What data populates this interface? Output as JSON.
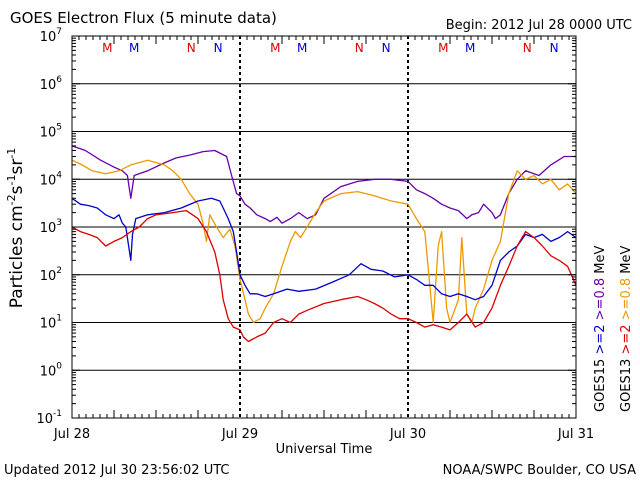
{
  "header": {
    "title": "GOES Electron Flux (5 minute data)",
    "begin": "Begin: 2012 Jul 28 0000 UTC"
  },
  "footer": {
    "updated": "Updated 2012 Jul 30 23:56:02 UTC",
    "credit": "NOAA/SWPC Boulder, CO USA"
  },
  "chart_data": {
    "type": "line",
    "title": "GOES Electron Flux (5 minute data)",
    "xlabel": "Universal Time",
    "ylabel": "Particles cm-2s-1sr-1",
    "ylabel_parts": {
      "main": "Particles cm",
      "exp1": "-2",
      "mid": "s",
      "exp2": "-1",
      "end": "sr",
      "exp3": "-1"
    },
    "x_ticks": [
      "Jul 28",
      "Jul 29",
      "Jul 30",
      "Jul 31"
    ],
    "x_range_days": [
      0,
      3
    ],
    "y_scale": "log",
    "ylim": [
      0.1,
      10000000
    ],
    "y_tick_labels": [
      {
        "base": "10",
        "exp": "7"
      },
      {
        "base": "10",
        "exp": "6"
      },
      {
        "base": "10",
        "exp": "5"
      },
      {
        "base": "10",
        "exp": "4"
      },
      {
        "base": "10",
        "exp": "3"
      },
      {
        "base": "10",
        "exp": "2"
      },
      {
        "base": "10",
        "exp": "1"
      },
      {
        "base": "10",
        "exp": "0"
      },
      {
        "base": "10",
        "exp": "-1"
      }
    ],
    "threshold_level": 1000,
    "markers": [
      {
        "label": "M",
        "color": "#dd0000",
        "day": 0.21
      },
      {
        "label": "M",
        "color": "#0000cc",
        "day": 0.37
      },
      {
        "label": "N",
        "color": "#dd0000",
        "day": 0.71
      },
      {
        "label": "N",
        "color": "#0000cc",
        "day": 0.87
      },
      {
        "label": "M",
        "color": "#dd0000",
        "day": 1.21
      },
      {
        "label": "M",
        "color": "#0000cc",
        "day": 1.37
      },
      {
        "label": "N",
        "color": "#dd0000",
        "day": 1.71
      },
      {
        "label": "N",
        "color": "#0000cc",
        "day": 1.87
      },
      {
        "label": "M",
        "color": "#dd0000",
        "day": 2.21
      },
      {
        "label": "M",
        "color": "#0000cc",
        "day": 2.37
      },
      {
        "label": "N",
        "color": "#dd0000",
        "day": 2.71
      },
      {
        "label": "N",
        "color": "#0000cc",
        "day": 2.87
      }
    ],
    "legend": [
      {
        "sat": "GOES15",
        "gt2": ">=2",
        "gt08": ">=0.8",
        "unit": "MeV",
        "gt2_color": "#0000cc",
        "gt08_color": "#6600aa"
      },
      {
        "sat": "GOES13",
        "gt2": ">=2",
        "gt08": ">=0.8",
        "unit": "MeV",
        "gt2_color": "#dd0000",
        "gt08_color": "#ee9900"
      }
    ],
    "series": [
      {
        "name": "GOES15 >=0.8 MeV",
        "color": "#6600aa",
        "points": [
          [
            0,
            50000
          ],
          [
            0.08,
            40000
          ],
          [
            0.17,
            25000
          ],
          [
            0.25,
            18000
          ],
          [
            0.3,
            15000
          ],
          [
            0.33,
            12000
          ],
          [
            0.35,
            4000
          ],
          [
            0.37,
            12000
          ],
          [
            0.45,
            15000
          ],
          [
            0.55,
            22000
          ],
          [
            0.62,
            28000
          ],
          [
            0.7,
            32000
          ],
          [
            0.78,
            38000
          ],
          [
            0.85,
            40000
          ],
          [
            0.92,
            30000
          ],
          [
            0.95,
            12000
          ],
          [
            0.98,
            5000
          ],
          [
            1.0,
            4500
          ],
          [
            1.03,
            3000
          ],
          [
            1.06,
            2500
          ],
          [
            1.1,
            1800
          ],
          [
            1.15,
            1500
          ],
          [
            1.18,
            1300
          ],
          [
            1.22,
            1600
          ],
          [
            1.25,
            1200
          ],
          [
            1.3,
            1500
          ],
          [
            1.35,
            2000
          ],
          [
            1.4,
            1500
          ],
          [
            1.45,
            1800
          ],
          [
            1.5,
            4000
          ],
          [
            1.6,
            7000
          ],
          [
            1.7,
            9000
          ],
          [
            1.8,
            10000
          ],
          [
            1.9,
            10000
          ],
          [
            2.0,
            9000
          ],
          [
            2.05,
            6000
          ],
          [
            2.1,
            5000
          ],
          [
            2.15,
            4000
          ],
          [
            2.2,
            3000
          ],
          [
            2.25,
            2500
          ],
          [
            2.3,
            2200
          ],
          [
            2.35,
            1500
          ],
          [
            2.38,
            1800
          ],
          [
            2.42,
            2000
          ],
          [
            2.45,
            3000
          ],
          [
            2.5,
            2000
          ],
          [
            2.52,
            1500
          ],
          [
            2.55,
            1800
          ],
          [
            2.6,
            5000
          ],
          [
            2.65,
            10000
          ],
          [
            2.7,
            15000
          ],
          [
            2.78,
            12000
          ],
          [
            2.85,
            20000
          ],
          [
            2.93,
            30000
          ],
          [
            3.0,
            30000
          ]
        ]
      },
      {
        "name": "GOES13 >=0.8 MeV",
        "color": "#ee9900",
        "points": [
          [
            0,
            25000
          ],
          [
            0.06,
            20000
          ],
          [
            0.12,
            15000
          ],
          [
            0.2,
            13000
          ],
          [
            0.28,
            15000
          ],
          [
            0.35,
            20000
          ],
          [
            0.45,
            25000
          ],
          [
            0.55,
            20000
          ],
          [
            0.6,
            15000
          ],
          [
            0.65,
            10000
          ],
          [
            0.7,
            5000
          ],
          [
            0.75,
            3000
          ],
          [
            0.78,
            1200
          ],
          [
            0.8,
            500
          ],
          [
            0.82,
            1800
          ],
          [
            0.86,
            1000
          ],
          [
            0.9,
            600
          ],
          [
            0.94,
            900
          ],
          [
            0.97,
            400
          ],
          [
            1.0,
            80
          ],
          [
            1.03,
            30
          ],
          [
            1.05,
            15
          ],
          [
            1.08,
            10
          ],
          [
            1.12,
            12
          ],
          [
            1.15,
            20
          ],
          [
            1.2,
            40
          ],
          [
            1.25,
            150
          ],
          [
            1.3,
            500
          ],
          [
            1.33,
            800
          ],
          [
            1.36,
            600
          ],
          [
            1.4,
            1000
          ],
          [
            1.45,
            2000
          ],
          [
            1.5,
            3500
          ],
          [
            1.6,
            5000
          ],
          [
            1.7,
            5500
          ],
          [
            1.8,
            4500
          ],
          [
            1.9,
            3500
          ],
          [
            2.0,
            3000
          ],
          [
            2.05,
            1500
          ],
          [
            2.1,
            800
          ],
          [
            2.13,
            60
          ],
          [
            2.15,
            10
          ],
          [
            2.18,
            400
          ],
          [
            2.2,
            800
          ],
          [
            2.23,
            20
          ],
          [
            2.25,
            10
          ],
          [
            2.3,
            30
          ],
          [
            2.32,
            600
          ],
          [
            2.35,
            15
          ],
          [
            2.38,
            10
          ],
          [
            2.4,
            20
          ],
          [
            2.45,
            50
          ],
          [
            2.5,
            200
          ],
          [
            2.55,
            500
          ],
          [
            2.6,
            5000
          ],
          [
            2.65,
            15000
          ],
          [
            2.7,
            10000
          ],
          [
            2.75,
            12000
          ],
          [
            2.8,
            8000
          ],
          [
            2.85,
            10000
          ],
          [
            2.9,
            6000
          ],
          [
            2.95,
            8000
          ],
          [
            3.0,
            5000
          ]
        ]
      },
      {
        "name": "GOES15 >=2 MeV",
        "color": "#0000cc",
        "points": [
          [
            0,
            4000
          ],
          [
            0.05,
            3000
          ],
          [
            0.1,
            2800
          ],
          [
            0.15,
            2500
          ],
          [
            0.2,
            1800
          ],
          [
            0.25,
            1500
          ],
          [
            0.28,
            1800
          ],
          [
            0.3,
            1200
          ],
          [
            0.32,
            1000
          ],
          [
            0.35,
            200
          ],
          [
            0.36,
            700
          ],
          [
            0.38,
            1500
          ],
          [
            0.45,
            1800
          ],
          [
            0.55,
            2000
          ],
          [
            0.65,
            2500
          ],
          [
            0.75,
            3500
          ],
          [
            0.83,
            4000
          ],
          [
            0.88,
            3500
          ],
          [
            0.9,
            2500
          ],
          [
            0.93,
            1500
          ],
          [
            0.96,
            800
          ],
          [
            0.98,
            300
          ],
          [
            1.0,
            100
          ],
          [
            1.03,
            60
          ],
          [
            1.06,
            40
          ],
          [
            1.1,
            40
          ],
          [
            1.15,
            35
          ],
          [
            1.2,
            40
          ],
          [
            1.28,
            50
          ],
          [
            1.35,
            45
          ],
          [
            1.45,
            50
          ],
          [
            1.55,
            70
          ],
          [
            1.65,
            100
          ],
          [
            1.72,
            170
          ],
          [
            1.78,
            130
          ],
          [
            1.85,
            120
          ],
          [
            1.92,
            90
          ],
          [
            2.0,
            100
          ],
          [
            2.05,
            80
          ],
          [
            2.1,
            60
          ],
          [
            2.15,
            60
          ],
          [
            2.2,
            40
          ],
          [
            2.25,
            35
          ],
          [
            2.3,
            40
          ],
          [
            2.35,
            35
          ],
          [
            2.4,
            30
          ],
          [
            2.45,
            35
          ],
          [
            2.5,
            60
          ],
          [
            2.55,
            200
          ],
          [
            2.6,
            300
          ],
          [
            2.65,
            400
          ],
          [
            2.7,
            700
          ],
          [
            2.75,
            600
          ],
          [
            2.8,
            700
          ],
          [
            2.85,
            500
          ],
          [
            2.9,
            600
          ],
          [
            2.95,
            800
          ],
          [
            3.0,
            600
          ]
        ]
      },
      {
        "name": "GOES13 >=2 MeV",
        "color": "#dd0000",
        "points": [
          [
            0,
            1000
          ],
          [
            0.05,
            800
          ],
          [
            0.1,
            700
          ],
          [
            0.15,
            600
          ],
          [
            0.2,
            400
          ],
          [
            0.25,
            500
          ],
          [
            0.3,
            600
          ],
          [
            0.35,
            800
          ],
          [
            0.4,
            1000
          ],
          [
            0.45,
            1500
          ],
          [
            0.5,
            1800
          ],
          [
            0.6,
            2000
          ],
          [
            0.68,
            2200
          ],
          [
            0.75,
            1500
          ],
          [
            0.8,
            800
          ],
          [
            0.85,
            300
          ],
          [
            0.88,
            100
          ],
          [
            0.9,
            30
          ],
          [
            0.93,
            12
          ],
          [
            0.96,
            8
          ],
          [
            1.0,
            7
          ],
          [
            1.02,
            5
          ],
          [
            1.05,
            4
          ],
          [
            1.1,
            5
          ],
          [
            1.15,
            6
          ],
          [
            1.2,
            10
          ],
          [
            1.25,
            12
          ],
          [
            1.3,
            10
          ],
          [
            1.35,
            15
          ],
          [
            1.4,
            18
          ],
          [
            1.5,
            25
          ],
          [
            1.6,
            30
          ],
          [
            1.7,
            35
          ],
          [
            1.75,
            30
          ],
          [
            1.8,
            25
          ],
          [
            1.85,
            20
          ],
          [
            1.9,
            15
          ],
          [
            1.95,
            12
          ],
          [
            2.0,
            12
          ],
          [
            2.05,
            10
          ],
          [
            2.1,
            8
          ],
          [
            2.15,
            9
          ],
          [
            2.2,
            8
          ],
          [
            2.25,
            7
          ],
          [
            2.3,
            10
          ],
          [
            2.35,
            15
          ],
          [
            2.4,
            8
          ],
          [
            2.45,
            10
          ],
          [
            2.5,
            20
          ],
          [
            2.55,
            60
          ],
          [
            2.6,
            150
          ],
          [
            2.65,
            400
          ],
          [
            2.7,
            800
          ],
          [
            2.75,
            600
          ],
          [
            2.8,
            400
          ],
          [
            2.85,
            250
          ],
          [
            2.9,
            200
          ],
          [
            2.95,
            150
          ],
          [
            3.0,
            60
          ]
        ]
      }
    ]
  }
}
